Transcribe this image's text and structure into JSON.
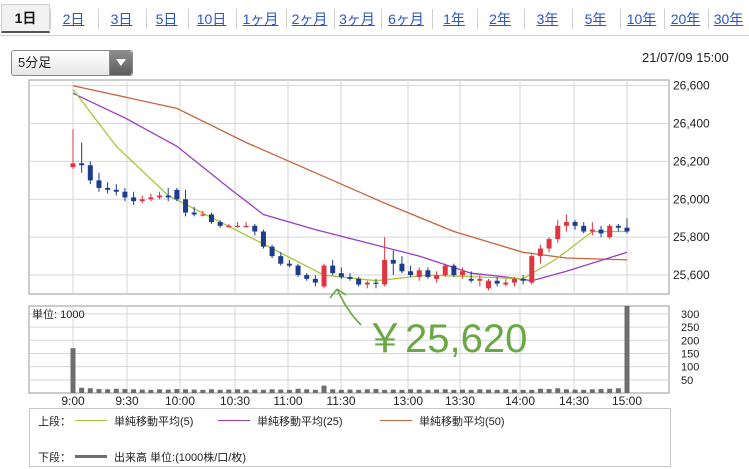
{
  "tabs": [
    "1日",
    "2日",
    "3日",
    "5日",
    "10日",
    "1ヶ月",
    "2ヶ月",
    "3ヶ月",
    "6ヶ月",
    "1年",
    "2年",
    "3年",
    "5年",
    "10年",
    "20年",
    "30年"
  ],
  "selected_tab": "1日",
  "interval_select": {
    "value": "5分足"
  },
  "datetime": "21/07/09 15:00",
  "colors": {
    "up": "#e03440",
    "down": "#1e3c8c",
    "ma5": "#a6c83c",
    "ma25": "#9a3cc8",
    "ma50": "#c8643c",
    "volume": "#6e6e6e",
    "annotation": "#6aa845"
  },
  "chart_data": {
    "type": "candlestick",
    "x_ticks": [
      "9:00",
      "9:30",
      "10:00",
      "10:30",
      "11:00",
      "11:30",
      "13:00",
      "13:30",
      "14:00",
      "14:30",
      "15:00"
    ],
    "price_axis": {
      "ticks": [
        "26,600",
        "26,400",
        "26,200",
        "26,000",
        "25,800",
        "25,600"
      ],
      "ylim": [
        25500,
        26630
      ]
    },
    "volume_axis": {
      "unit_label": "単位: 1000",
      "ticks": [
        "300",
        "250",
        "200",
        "150",
        "100",
        "50"
      ],
      "ylim": [
        0,
        330
      ]
    },
    "candles": [
      [
        26170,
        26370,
        26160,
        26190
      ],
      [
        26190,
        26300,
        26140,
        26180
      ],
      [
        26180,
        26200,
        26080,
        26100
      ],
      [
        26100,
        26140,
        26040,
        26060
      ],
      [
        26060,
        26090,
        26030,
        26050
      ],
      [
        26050,
        26080,
        26020,
        26040
      ],
      [
        26040,
        26060,
        25990,
        26010
      ],
      [
        26010,
        26040,
        25970,
        25990
      ],
      [
        25990,
        26020,
        25980,
        26000
      ],
      [
        26000,
        26030,
        25990,
        26010
      ],
      [
        26010,
        26040,
        26000,
        26020
      ],
      [
        26020,
        26060,
        25990,
        26010
      ],
      [
        26050,
        26060,
        25990,
        26000
      ],
      [
        26000,
        26050,
        25910,
        25930
      ],
      [
        25930,
        25960,
        25910,
        25920
      ],
      [
        25920,
        25940,
        25910,
        25920
      ],
      [
        25920,
        25930,
        25870,
        25880
      ],
      [
        25880,
        25890,
        25850,
        25860
      ],
      [
        25860,
        25870,
        25850,
        25860
      ],
      [
        25860,
        25880,
        25850,
        25860
      ],
      [
        25860,
        25880,
        25850,
        25860
      ],
      [
        25860,
        25870,
        25810,
        25830
      ],
      [
        25830,
        25840,
        25740,
        25750
      ],
      [
        25750,
        25760,
        25690,
        25700
      ],
      [
        25700,
        25720,
        25650,
        25660
      ],
      [
        25660,
        25680,
        25640,
        25650
      ],
      [
        25650,
        25660,
        25590,
        25600
      ],
      [
        25600,
        25610,
        25570,
        25580
      ],
      [
        25580,
        25600,
        25540,
        25560
      ],
      [
        25540,
        25660,
        25530,
        25650
      ],
      [
        25650,
        25680,
        25600,
        25610
      ],
      [
        25610,
        25640,
        25580,
        25590
      ],
      [
        25590,
        25610,
        25570,
        25580
      ],
      [
        25580,
        25590,
        25540,
        25550
      ],
      [
        25550,
        25570,
        25530,
        25560
      ],
      [
        25560,
        25580,
        25530,
        25555
      ],
      [
        25550,
        25800,
        25540,
        25680
      ],
      [
        25680,
        25730,
        25600,
        25660
      ],
      [
        25660,
        25700,
        25610,
        25620
      ],
      [
        25620,
        25650,
        25590,
        25600
      ],
      [
        25590,
        25640,
        25570,
        25625
      ],
      [
        25625,
        25640,
        25580,
        25590
      ],
      [
        25580,
        25620,
        25560,
        25600
      ],
      [
        25600,
        25660,
        25590,
        25650
      ],
      [
        25650,
        25660,
        25590,
        25600
      ],
      [
        25600,
        25640,
        25580,
        25620
      ],
      [
        25580,
        25620,
        25560,
        25570
      ],
      [
        25570,
        25600,
        25540,
        25580
      ],
      [
        25530,
        25580,
        25520,
        25570
      ],
      [
        25570,
        25590,
        25540,
        25555
      ],
      [
        25550,
        25580,
        25540,
        25560
      ],
      [
        25560,
        25590,
        25540,
        25580
      ],
      [
        25580,
        25600,
        25550,
        25570
      ],
      [
        25560,
        25710,
        25550,
        25700
      ],
      [
        25700,
        25760,
        25660,
        25740
      ],
      [
        25740,
        25800,
        25720,
        25790
      ],
      [
        25790,
        25890,
        25770,
        25860
      ],
      [
        25860,
        25920,
        25830,
        25880
      ],
      [
        25880,
        25890,
        25840,
        25860
      ],
      [
        25860,
        25880,
        25820,
        25830
      ],
      [
        25830,
        25880,
        25810,
        25840
      ],
      [
        25840,
        25860,
        25800,
        25820
      ],
      [
        25800,
        25870,
        25790,
        25860
      ],
      [
        25860,
        25870,
        25830,
        25850
      ],
      [
        25850,
        25900,
        25820,
        25830
      ]
    ],
    "ma5": [
      [
        0,
        26580
      ],
      [
        5,
        26280
      ],
      [
        11,
        26020
      ],
      [
        17,
        25880
      ],
      [
        23,
        25740
      ],
      [
        29,
        25600
      ],
      [
        35,
        25570
      ],
      [
        41,
        25600
      ],
      [
        47,
        25590
      ],
      [
        52,
        25580
      ],
      [
        56,
        25690
      ],
      [
        60,
        25830
      ],
      [
        64,
        25830
      ]
    ],
    "ma25": [
      [
        0,
        26560
      ],
      [
        6,
        26430
      ],
      [
        12,
        26280
      ],
      [
        18,
        26060
      ],
      [
        22,
        25920
      ],
      [
        28,
        25840
      ],
      [
        34,
        25770
      ],
      [
        40,
        25700
      ],
      [
        46,
        25610
      ],
      [
        50,
        25590
      ],
      [
        53,
        25570
      ],
      [
        57,
        25620
      ],
      [
        64,
        25720
      ]
    ],
    "ma50": [
      [
        0,
        26600
      ],
      [
        12,
        26480
      ],
      [
        20,
        26300
      ],
      [
        28,
        26140
      ],
      [
        36,
        25980
      ],
      [
        44,
        25830
      ],
      [
        52,
        25720
      ],
      [
        57,
        25690
      ],
      [
        64,
        25680
      ]
    ],
    "volume": [
      170,
      20,
      18,
      15,
      14,
      16,
      15,
      14,
      13,
      12,
      14,
      13,
      15,
      14,
      13,
      12,
      14,
      12,
      13,
      14,
      12,
      13,
      12,
      14,
      13,
      12,
      16,
      14,
      12,
      28,
      14,
      12,
      13,
      12,
      14,
      15,
      12,
      13,
      12,
      14,
      13,
      12,
      13,
      14,
      12,
      13,
      12,
      14,
      13,
      12,
      14,
      13,
      12,
      12,
      16,
      15,
      18,
      14,
      13,
      12,
      14,
      15,
      16,
      18,
      330
    ],
    "annotation": "￥25,620",
    "legend": {
      "upper_label": "上段：",
      "lower_label": "下段：",
      "ma5": "単純移動平均(5)",
      "ma25": "単純移動平均(25)",
      "ma50": "単純移動平均(50)",
      "volume": "出来高 単位:(1000株/口/枚)"
    }
  }
}
